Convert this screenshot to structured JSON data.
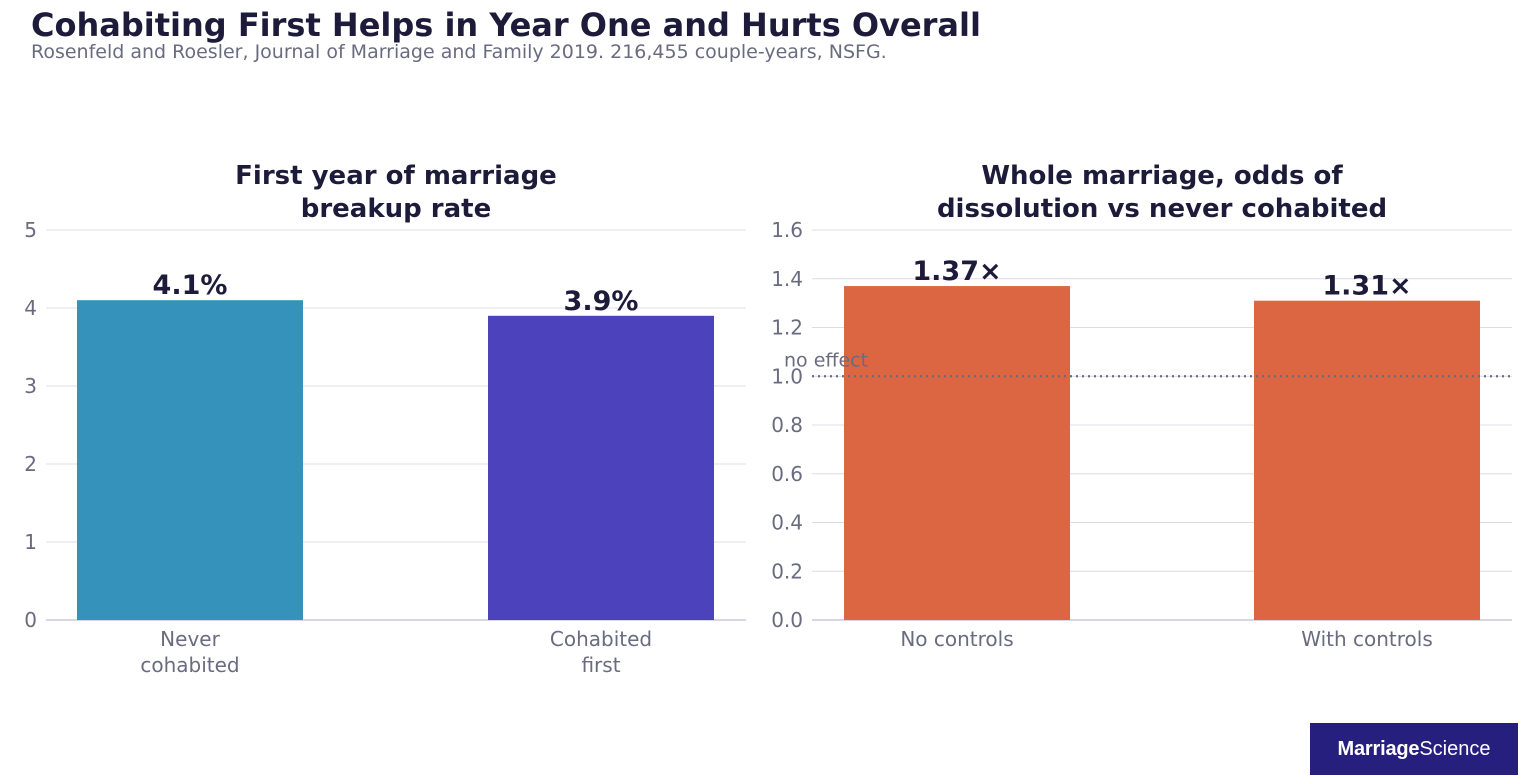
{
  "header": {
    "title": "Cohabiting First Helps in Year One and Hurts Overall",
    "subtitle": "Rosenfeld and Roesler, Journal of Marriage and Family 2019. 216,455 couple-years, NSFG."
  },
  "brand": {
    "word1": "Marriage",
    "word2": "Science"
  },
  "chart_data": [
    {
      "type": "bar",
      "title": [
        "First year of marriage",
        "breakup rate"
      ],
      "categories": [
        [
          "Never",
          "cohabited"
        ],
        [
          "Cohabited",
          "first"
        ]
      ],
      "values": [
        4.1,
        3.9
      ],
      "data_labels": [
        "4.1%",
        "3.9%"
      ],
      "colors": [
        "#3593bb",
        "#4c42bb"
      ],
      "ylim": [
        0,
        5
      ],
      "yticks": [
        0,
        1,
        2,
        3,
        4,
        5
      ],
      "ytick_labels": [
        "0",
        "1",
        "2",
        "3",
        "4",
        "5"
      ],
      "grid": true,
      "xlabel": "",
      "ylabel": ""
    },
    {
      "type": "bar",
      "title": [
        "Whole marriage, odds of",
        "dissolution vs never cohabited"
      ],
      "categories": [
        [
          "No controls"
        ],
        [
          "With controls"
        ]
      ],
      "values": [
        1.37,
        1.31
      ],
      "data_labels": [
        "1.37×",
        "1.31×"
      ],
      "colors": [
        "#db6641",
        "#db6641"
      ],
      "ylim": [
        0,
        1.6
      ],
      "yticks": [
        0,
        0.2,
        0.4,
        0.6,
        0.8,
        1.0,
        1.2,
        1.4,
        1.6
      ],
      "ytick_labels": [
        "0.0",
        "0.2",
        "0.4",
        "0.6",
        "0.8",
        "1.0",
        "1.2",
        "1.4",
        "1.6"
      ],
      "grid": true,
      "reference_line": {
        "value": 1.0,
        "label": "no effect",
        "color": "#6b6b80"
      },
      "xlabel": "",
      "ylabel": ""
    }
  ]
}
